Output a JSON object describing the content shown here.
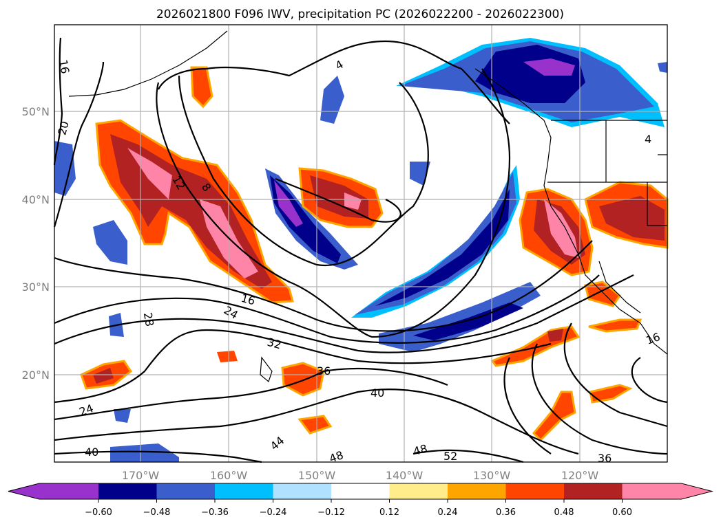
{
  "title": "2026021800 F096 IWV, precipitation PC (2026022200 - 2026022300)",
  "lat_labels": [
    "50°N",
    "40°N",
    "30°N",
    "20°N"
  ],
  "lon_labels": [
    "170°W",
    "160°W",
    "150°W",
    "140°W",
    "130°W",
    "120°W"
  ],
  "contour_labels": [
    "16",
    "20",
    "4",
    "12",
    "8",
    "16",
    "24",
    "32",
    "28",
    "36",
    "40",
    "24",
    "40",
    "44",
    "48",
    "48",
    "52",
    "36",
    "16",
    "4"
  ],
  "colorbar": {
    "ticks": [
      "−0.60",
      "−0.48",
      "−0.36",
      "−0.24",
      "−0.12",
      "0.12",
      "0.24",
      "0.36",
      "0.48",
      "0.60"
    ],
    "colors": [
      "#9932cc",
      "#00008b",
      "#3a5fcd",
      "#00bfff",
      "#b0e2ff",
      "#ffffff",
      "#ffec8b",
      "#ffa500",
      "#ff4500",
      "#b22222",
      "#ff85a8"
    ]
  }
}
